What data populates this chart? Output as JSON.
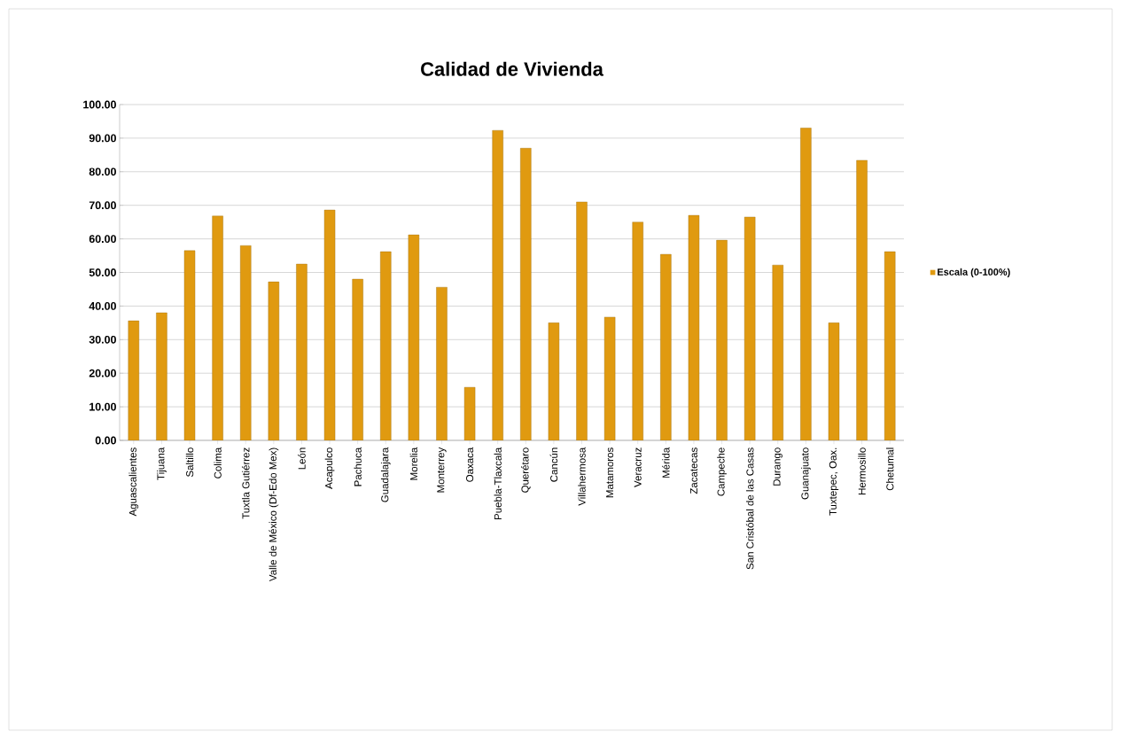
{
  "chart_data": {
    "type": "bar",
    "title": "Calidad de Vivienda",
    "categories": [
      "Aguascalientes",
      "Tijuana",
      "Saltillo",
      "Colima",
      "Tuxtla Gutiérrez",
      "Valle de México (Df-Edo Mex)",
      "León",
      "Acapulco",
      "Pachuca",
      "Guadalajara",
      "Morelia",
      "Monterrey",
      "Oaxaca",
      "Puebla-Tlaxcala",
      "Querétaro",
      "Cancún",
      "Villahermosa",
      "Matamoros",
      "Veracruz",
      "Mérida",
      "Zacatecas",
      "Campeche",
      "San Cristóbal de las Casas",
      "Durango",
      "Guanajuato",
      "Tuxtepec, Oax.",
      "Hermosillo",
      "Chetumal"
    ],
    "series": [
      {
        "name": "Escala (0-100%)",
        "color": "#e09a10",
        "values": [
          35.6,
          38.0,
          56.5,
          66.8,
          58.0,
          47.2,
          52.5,
          68.6,
          48.0,
          56.2,
          61.2,
          45.6,
          15.8,
          92.3,
          87.0,
          35.0,
          71.0,
          36.7,
          65.0,
          55.4,
          67.0,
          59.6,
          66.5,
          52.2,
          93.0,
          35.0,
          83.4,
          56.2
        ]
      }
    ],
    "ylim": [
      0,
      100
    ],
    "yticks": [
      {
        "value": 0,
        "label": "0.00"
      },
      {
        "value": 10,
        "label": "10.00"
      },
      {
        "value": 20,
        "label": "20.00"
      },
      {
        "value": 30,
        "label": "30.00"
      },
      {
        "value": 40,
        "label": "40.00"
      },
      {
        "value": 50,
        "label": "50.00"
      },
      {
        "value": 60,
        "label": "60.00"
      },
      {
        "value": 70,
        "label": "70.00"
      },
      {
        "value": 80,
        "label": "80.00"
      },
      {
        "value": 90,
        "label": "90.00"
      },
      {
        "value": 100,
        "label": "100.00"
      }
    ],
    "grid": "y",
    "legend": "right"
  }
}
